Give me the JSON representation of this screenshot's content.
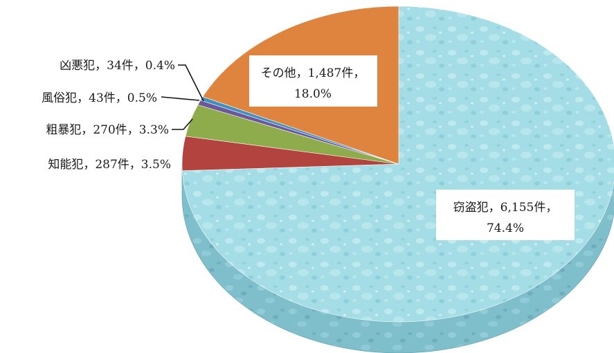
{
  "chart_data": {
    "type": "pie",
    "title": "",
    "unit": "件",
    "slices": [
      {
        "name": "窃盗犯",
        "count": 6155,
        "count_text": "6,155件",
        "percent": 74.4,
        "percent_text": "74.4%",
        "color": "#a4dde6"
      },
      {
        "name": "知能犯",
        "count": 287,
        "count_text": "287件",
        "percent": 3.5,
        "percent_text": "3.5%",
        "color": "#b2433e"
      },
      {
        "name": "粗暴犯",
        "count": 270,
        "count_text": "270件",
        "percent": 3.3,
        "percent_text": "3.3%",
        "color": "#8fac4d"
      },
      {
        "name": "風俗犯",
        "count": 43,
        "count_text": "43件",
        "percent": 0.5,
        "percent_text": "0.5%",
        "color": "#6d569a"
      },
      {
        "name": "凶悪犯",
        "count": 34,
        "count_text": "34件",
        "percent": 0.4,
        "percent_text": "0.4%",
        "color": "#3f8fc0"
      },
      {
        "name": "その他",
        "count": 1487,
        "count_text": "1,487件",
        "percent": 18.0,
        "percent_text": "18.0%",
        "color": "#df843e"
      }
    ],
    "labels": {
      "theft_line1": "窃盗犯，6,155件，",
      "theft_line2": "74.4%",
      "fraud": "知能犯，287件，3.5%",
      "violent": "粗暴犯，270件，3.3%",
      "morals": "風俗犯，43件，0.5%",
      "felony": "凶悪犯，34件，0.4%",
      "other_line1": "その他，1,487件，",
      "other_line2": "18.0%"
    }
  }
}
